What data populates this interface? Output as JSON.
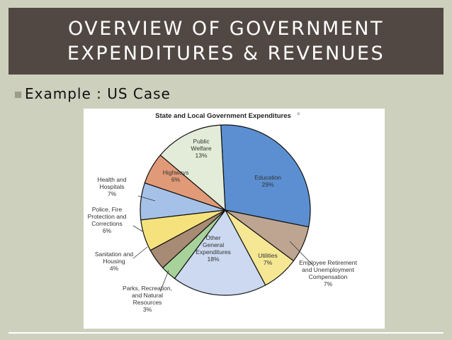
{
  "slide": {
    "title_line1": "OVERVIEW OF GOVERNMENT",
    "title_line2": "EXPENDITURES & REVENUES",
    "bullet": "Example : US Case"
  },
  "chart_data": {
    "type": "pie",
    "title": "State and Local Government Expenditures",
    "title_note": "c",
    "slices": [
      {
        "lines": [
          "Education",
          "29%"
        ],
        "value": 29,
        "color": "#5b8fd1"
      },
      {
        "lines": [
          "Employee Retirement",
          "and Unemployment",
          "Compensation",
          "7%"
        ],
        "value": 7,
        "color": "#bea591"
      },
      {
        "lines": [
          "Utilities",
          "7%"
        ],
        "value": 7,
        "color": "#f5e793"
      },
      {
        "lines": [
          "Other",
          "General",
          "Expenditures",
          "18%"
        ],
        "value": 18,
        "color": "#ccd9f0"
      },
      {
        "lines": [
          "Parks, Recreation,",
          "and Natural",
          "Resources",
          "3%"
        ],
        "value": 3,
        "color": "#a7d39a"
      },
      {
        "lines": [
          "Sanitation and",
          "Housing",
          "4%"
        ],
        "value": 4,
        "color": "#a88b74"
      },
      {
        "lines": [
          "Police, Fire",
          "Protection and",
          "Corrections",
          "6%"
        ],
        "value": 6,
        "color": "#f5e27d"
      },
      {
        "lines": [
          "Health and",
          "Hospitals",
          "7%"
        ],
        "value": 7,
        "color": "#a5c1e8"
      },
      {
        "lines": [
          "Highways",
          "6%"
        ],
        "value": 6,
        "color": "#e19a78"
      },
      {
        "lines": [
          "Public",
          "Welfare",
          "13%"
        ],
        "value": 13,
        "color": "#e3ecd8"
      }
    ]
  }
}
